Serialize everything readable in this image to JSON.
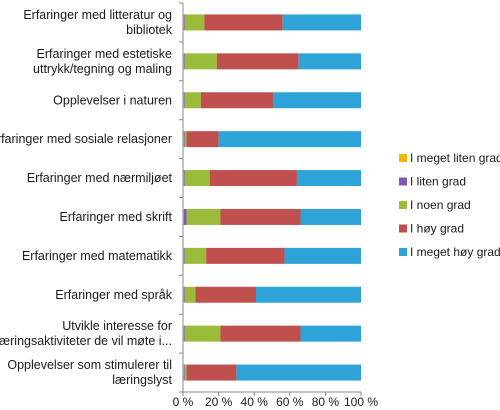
{
  "chart_data": {
    "type": "bar",
    "orientation": "horizontal",
    "stacked": true,
    "percent_stacked": true,
    "categories": [
      [
        "Erfaringer med litteratur og",
        "bibliotek"
      ],
      [
        "Erfaringer med estetiske",
        "uttrykk/tegning og maling"
      ],
      [
        "Opplevelser i naturen"
      ],
      [
        "Erfaringer med sosiale relasjoner"
      ],
      [
        "Erfaringer med nærmiljøet"
      ],
      [
        "Erfaringer med skrift"
      ],
      [
        "Erfaringer med matematikk"
      ],
      [
        "Erfaringer med språk"
      ],
      [
        "Utvikle interesse for",
        "læringsaktiviteter de vil møte i..."
      ],
      [
        "Opplevelser som stimulerer til",
        "læringslyst"
      ]
    ],
    "series": [
      {
        "name": "I meget liten grad",
        "color": "#f5b800",
        "values": [
          0.5,
          0.5,
          0.5,
          0.5,
          0.5,
          0.5,
          0.5,
          0.5,
          0.5,
          0.5
        ]
      },
      {
        "name": "I liten grad",
        "color": "#7a5ea8",
        "values": [
          0.5,
          0.5,
          0.5,
          0.5,
          0.5,
          1.5,
          0.5,
          0.5,
          0.5,
          0.5
        ]
      },
      {
        "name": "I noen grad",
        "color": "#9bbb3b",
        "values": [
          11,
          18,
          9,
          1,
          14,
          19,
          12,
          6,
          20,
          1
        ]
      },
      {
        "name": "I høy grad",
        "color": "#c0504d",
        "values": [
          44,
          46,
          41,
          18,
          49,
          45,
          44,
          34,
          45,
          28
        ]
      },
      {
        "name": "I meget høy grad",
        "color": "#2ea3d8",
        "values": [
          44,
          35,
          49,
          80,
          36,
          34,
          43,
          59,
          34,
          70
        ]
      }
    ],
    "x_ticks": [
      "0 %",
      "20 %",
      "40 %",
      "60 %",
      "80 %",
      "100 %"
    ],
    "xlim": [
      0,
      100
    ],
    "grid": false,
    "legend_position": "right"
  }
}
